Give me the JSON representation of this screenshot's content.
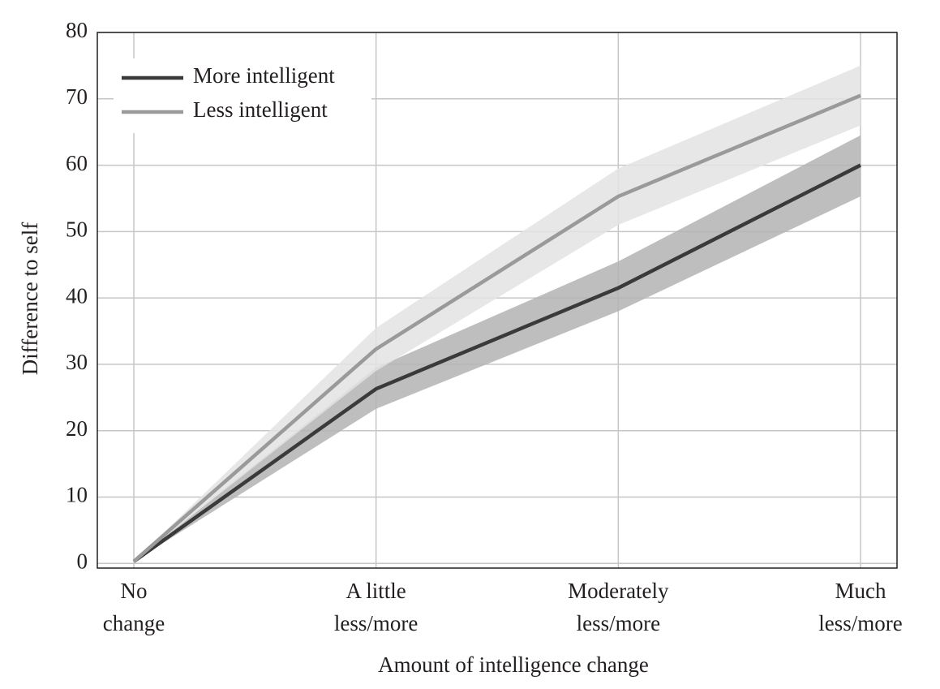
{
  "chart_data": {
    "type": "line",
    "xlabel": "Amount of intelligence change",
    "ylabel": "Difference to self",
    "categories": [
      "No\nchange",
      "A little\nless/more",
      "Moderately\nless/more",
      "Much\nless/more"
    ],
    "series": [
      {
        "name": "More intelligent",
        "color": "#3a3a3a",
        "band_color": "#b3b3b3",
        "values": [
          0.3,
          26.3,
          41.5,
          60
        ],
        "lower": [
          0.3,
          23.3,
          38,
          55.3
        ],
        "upper": [
          0.3,
          29.5,
          45.5,
          64.5
        ]
      },
      {
        "name": "Less intelligent",
        "color": "#9a9a9a",
        "band_color": "#e3e3e3",
        "values": [
          0.3,
          32.3,
          55.3,
          70.5
        ],
        "lower": [
          0.3,
          29,
          51,
          66
        ],
        "upper": [
          0.3,
          35.5,
          59.5,
          75
        ]
      }
    ],
    "ylim": [
      -0.7,
      80
    ],
    "yticks": [
      0,
      10,
      20,
      30,
      40,
      50,
      60,
      70,
      80
    ],
    "grid": true,
    "legend": "top-left"
  }
}
